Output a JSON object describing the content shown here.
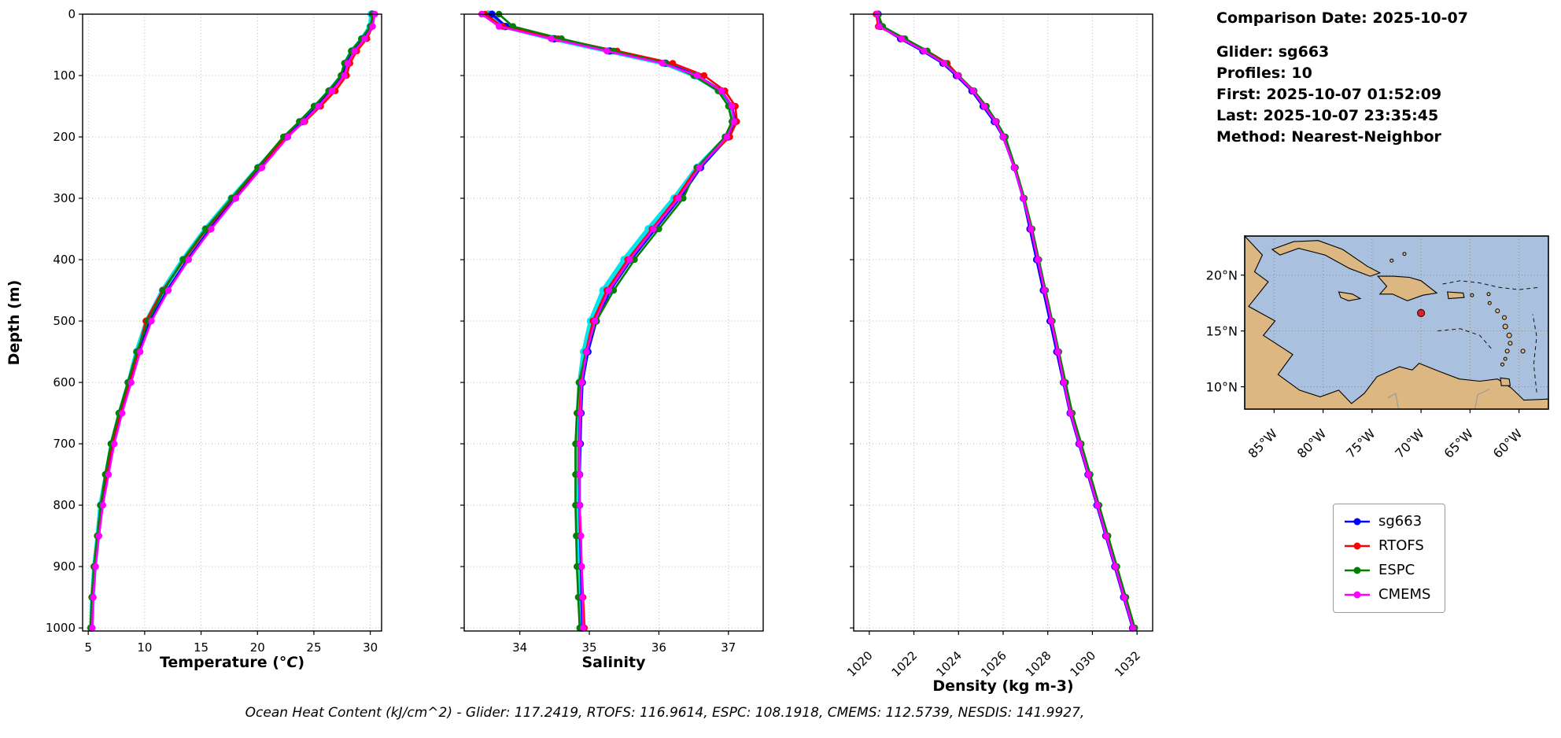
{
  "info": {
    "comparison_date": "Comparison Date: 2025-10-07",
    "glider": "Glider: sg663",
    "profiles": "Profiles: 10",
    "first": "First: 2025-10-07 01:52:09",
    "last": "Last: 2025-10-07 23:35:45",
    "method": "Method: Nearest-Neighbor"
  },
  "footer": {
    "text": "Ocean Heat Content (kJ/cm^2) - Glider: 117.2419,  RTOFS: 116.9614,  ESPC: 108.1918,  CMEMS: 112.5739,  NESDIS: 141.9927,"
  },
  "legend": {
    "entries": [
      {
        "label": "sg663",
        "color": "#0000ff"
      },
      {
        "label": "RTOFS",
        "color": "#ff0000"
      },
      {
        "label": "ESPC",
        "color": "#008000"
      },
      {
        "label": "CMEMS",
        "color": "#ff00ff"
      }
    ]
  },
  "map": {
    "extent": {
      "lon_min": 57,
      "lon_max": 88,
      "lat_min": 8,
      "lat_max": 23.5
    },
    "lat_ticks": [
      {
        "label": "20°N",
        "value": 20
      },
      {
        "label": "15°N",
        "value": 15
      },
      {
        "label": "10°N",
        "value": 10
      }
    ],
    "lon_ticks": [
      {
        "label": "85°W",
        "value": 85
      },
      {
        "label": "80°W",
        "value": 80
      },
      {
        "label": "75°W",
        "value": 75
      },
      {
        "label": "70°W",
        "value": 70
      },
      {
        "label": "65°W",
        "value": 65
      },
      {
        "label": "60°W",
        "value": 60
      }
    ],
    "marker": {
      "lon": 70.0,
      "lat": 16.6,
      "color": "#d62728"
    },
    "colors": {
      "ocean": "#a9c0de",
      "land": "#ddb782",
      "coast": "#000000"
    }
  },
  "chart_data": [
    {
      "id": "temperature",
      "type": "line",
      "xlabel": "Temperature (°C)",
      "xlabel_parts": [
        {
          "text": "Temperature ("
        },
        {
          "text": "°C",
          "italic": true
        },
        {
          "text": ")"
        }
      ],
      "ylabel": "Depth (m)",
      "xlim": [
        4.5,
        31
      ],
      "ylim": [
        0,
        1005
      ],
      "x_ticks": [
        5,
        10,
        15,
        20,
        25,
        30
      ],
      "y_ticks": [
        0,
        100,
        200,
        300,
        400,
        500,
        600,
        700,
        800,
        900,
        1000
      ],
      "grid": true,
      "legend_position": "external",
      "depths": [
        0,
        20,
        40,
        60,
        80,
        100,
        125,
        150,
        175,
        200,
        250,
        300,
        350,
        400,
        450,
        500,
        550,
        600,
        650,
        700,
        750,
        800,
        850,
        900,
        950,
        1000
      ],
      "series": [
        {
          "name": "glider-raw-profiles",
          "color": "#00e5ee",
          "raw": true,
          "in_legend": false,
          "values": [
            30.1,
            30.0,
            29.3,
            28.4,
            27.8,
            27.5,
            26.4,
            25.2,
            23.9,
            22.5,
            20.1,
            17.7,
            15.4,
            13.4,
            11.6,
            10.2,
            9.3,
            8.6,
            7.8,
            7.1,
            6.6,
            6.1,
            5.85,
            5.55,
            5.38,
            5.28
          ]
        },
        {
          "name": "sg663",
          "color": "#0000ff",
          "in_legend": true,
          "values": [
            30.2,
            30.1,
            29.4,
            28.5,
            27.9,
            27.6,
            26.5,
            25.3,
            24.0,
            22.6,
            20.3,
            18.0,
            15.8,
            13.8,
            12.0,
            10.5,
            9.5,
            8.7,
            7.9,
            7.2,
            6.7,
            6.2,
            5.9,
            5.6,
            5.4,
            5.3
          ]
        },
        {
          "name": "RTOFS",
          "color": "#ff0000",
          "in_legend": true,
          "values": [
            30.3,
            30.2,
            29.7,
            28.8,
            28.2,
            27.9,
            26.9,
            25.6,
            24.2,
            22.5,
            20.1,
            17.8,
            15.5,
            13.5,
            11.6,
            10.1,
            9.4,
            8.6,
            7.8,
            7.1,
            6.6,
            6.1,
            5.8,
            5.5,
            5.35,
            5.25
          ]
        },
        {
          "name": "ESPC",
          "color": "#008000",
          "in_legend": true,
          "values": [
            30.2,
            30.0,
            29.2,
            28.3,
            27.7,
            27.4,
            26.3,
            25.0,
            23.7,
            22.3,
            20.0,
            17.7,
            15.4,
            13.4,
            11.7,
            10.3,
            9.3,
            8.5,
            7.7,
            7.0,
            6.5,
            6.1,
            5.8,
            5.5,
            5.3,
            5.2
          ]
        },
        {
          "name": "CMEMS",
          "color": "#ff00ff",
          "in_legend": true,
          "values": [
            30.4,
            30.2,
            29.5,
            28.6,
            28.0,
            27.7,
            26.6,
            25.4,
            24.1,
            22.7,
            20.4,
            18.1,
            15.9,
            13.9,
            12.1,
            10.6,
            9.6,
            8.8,
            8.0,
            7.3,
            6.8,
            6.3,
            5.95,
            5.65,
            5.45,
            5.35
          ]
        }
      ]
    },
    {
      "id": "salinity",
      "type": "line",
      "xlabel": "Salinity",
      "xlabel_parts": [
        {
          "text": "Salinity"
        }
      ],
      "ylabel": "Depth (m)",
      "xlim": [
        33.2,
        37.5
      ],
      "ylim": [
        0,
        1005
      ],
      "x_ticks": [
        34,
        35,
        36,
        37
      ],
      "y_ticks": [
        0,
        100,
        200,
        300,
        400,
        500,
        600,
        700,
        800,
        900,
        1000
      ],
      "grid": true,
      "depths": [
        0,
        20,
        40,
        60,
        80,
        100,
        125,
        150,
        175,
        200,
        250,
        300,
        350,
        400,
        450,
        500,
        550,
        600,
        650,
        700,
        750,
        800,
        850,
        900,
        950,
        1000
      ],
      "series": [
        {
          "name": "glider-raw-profiles",
          "color": "#00e5ee",
          "raw": true,
          "in_legend": false,
          "values": [
            33.55,
            33.78,
            34.48,
            35.28,
            36.08,
            36.52,
            36.88,
            37.03,
            37.08,
            36.98,
            36.55,
            36.22,
            35.85,
            35.5,
            35.2,
            35.02,
            34.92,
            34.86,
            34.84,
            34.83,
            34.83,
            34.84,
            34.85,
            34.87,
            34.88,
            34.89
          ]
        },
        {
          "name": "sg663",
          "color": "#0000ff",
          "in_legend": true,
          "values": [
            33.6,
            33.8,
            34.5,
            35.3,
            36.1,
            36.55,
            36.9,
            37.05,
            37.1,
            37.0,
            36.6,
            36.3,
            35.95,
            35.6,
            35.3,
            35.1,
            34.98,
            34.9,
            34.88,
            34.87,
            34.86,
            34.86,
            34.87,
            34.88,
            34.89,
            34.9
          ]
        },
        {
          "name": "RTOFS",
          "color": "#ff0000",
          "in_legend": true,
          "values": [
            33.5,
            33.75,
            34.55,
            35.4,
            36.2,
            36.65,
            36.95,
            37.1,
            37.12,
            37.02,
            36.55,
            36.25,
            35.9,
            35.55,
            35.25,
            35.05,
            34.95,
            34.88,
            34.86,
            34.85,
            34.85,
            34.86,
            34.87,
            34.89,
            34.91,
            34.93
          ]
        },
        {
          "name": "ESPC",
          "color": "#008000",
          "in_legend": true,
          "values": [
            33.7,
            33.9,
            34.6,
            35.35,
            36.1,
            36.5,
            36.85,
            37.0,
            37.05,
            36.95,
            36.55,
            36.35,
            36.0,
            35.65,
            35.35,
            35.1,
            34.95,
            34.85,
            34.82,
            34.8,
            34.8,
            34.8,
            34.81,
            34.82,
            34.84,
            34.86
          ]
        },
        {
          "name": "CMEMS",
          "color": "#ff00ff",
          "in_legend": true,
          "values": [
            33.45,
            33.7,
            34.45,
            35.25,
            36.05,
            36.55,
            36.9,
            37.05,
            37.08,
            36.98,
            36.58,
            36.28,
            35.92,
            35.58,
            35.28,
            35.08,
            34.96,
            34.89,
            34.87,
            34.86,
            34.86,
            34.86,
            34.88,
            34.89,
            34.9,
            34.91
          ]
        }
      ]
    },
    {
      "id": "density",
      "type": "line",
      "xlabel": "Density (kg m-3)",
      "xlabel_parts": [
        {
          "text": "Density (kg m-3)"
        }
      ],
      "ylabel": "Depth (m)",
      "xlim": [
        1019.3,
        1032.7
      ],
      "ylim": [
        0,
        1005
      ],
      "x_ticks": [
        1020,
        1022,
        1024,
        1026,
        1028,
        1030,
        1032
      ],
      "x_tick_rotation": 45,
      "y_ticks": [
        0,
        100,
        200,
        300,
        400,
        500,
        600,
        700,
        800,
        900,
        1000
      ],
      "grid": true,
      "depths": [
        0,
        20,
        40,
        60,
        80,
        100,
        125,
        150,
        175,
        200,
        250,
        300,
        350,
        400,
        450,
        500,
        550,
        600,
        650,
        700,
        750,
        800,
        850,
        900,
        950,
        1000
      ],
      "series": [
        {
          "name": "sg663",
          "color": "#0000ff",
          "in_legend": true,
          "values": [
            1020.4,
            1020.5,
            1021.4,
            1022.4,
            1023.3,
            1023.9,
            1024.6,
            1025.1,
            1025.6,
            1026.0,
            1026.5,
            1026.9,
            1027.2,
            1027.5,
            1027.8,
            1028.1,
            1028.4,
            1028.7,
            1029.0,
            1029.4,
            1029.8,
            1030.2,
            1030.6,
            1031.0,
            1031.4,
            1031.8
          ]
        },
        {
          "name": "RTOFS",
          "color": "#ff0000",
          "in_legend": true,
          "values": [
            1020.3,
            1020.4,
            1021.5,
            1022.6,
            1023.5,
            1024.0,
            1024.7,
            1025.2,
            1025.7,
            1026.05,
            1026.55,
            1026.95,
            1027.25,
            1027.55,
            1027.85,
            1028.15,
            1028.45,
            1028.75,
            1029.05,
            1029.45,
            1029.85,
            1030.25,
            1030.65,
            1031.05,
            1031.45,
            1031.85
          ]
        },
        {
          "name": "ESPC",
          "color": "#008000",
          "in_legend": true,
          "values": [
            1020.4,
            1020.6,
            1021.6,
            1022.6,
            1023.4,
            1024.0,
            1024.7,
            1025.25,
            1025.7,
            1026.1,
            1026.55,
            1026.95,
            1027.3,
            1027.6,
            1027.9,
            1028.2,
            1028.5,
            1028.8,
            1029.1,
            1029.5,
            1029.9,
            1030.3,
            1030.7,
            1031.1,
            1031.5,
            1031.9
          ]
        },
        {
          "name": "CMEMS",
          "color": "#ff00ff",
          "in_legend": true,
          "values": [
            1020.35,
            1020.45,
            1021.45,
            1022.45,
            1023.35,
            1023.95,
            1024.65,
            1025.15,
            1025.65,
            1026.0,
            1026.5,
            1026.9,
            1027.25,
            1027.55,
            1027.85,
            1028.15,
            1028.45,
            1028.72,
            1029.02,
            1029.42,
            1029.82,
            1030.22,
            1030.62,
            1031.02,
            1031.42,
            1031.82
          ]
        }
      ]
    }
  ]
}
